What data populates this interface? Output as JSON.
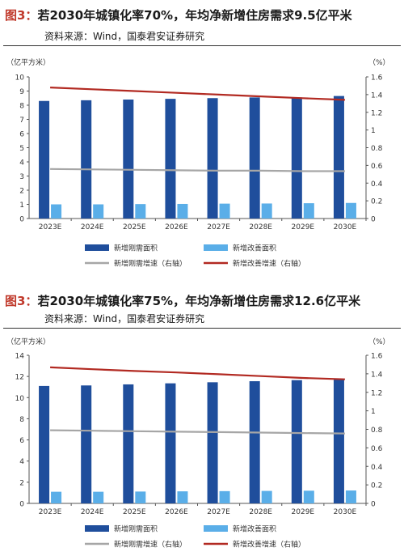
{
  "charts": [
    {
      "fig_label": "图3：",
      "title": "若2030年城镇化率70%，年均净新增住房需求9.5亿平米",
      "source": "资料来源：Wind，国泰君安证券研究",
      "chart_data": {
        "type": "bar",
        "categories": [
          "2023E",
          "2024E",
          "2025E",
          "2026E",
          "2027E",
          "2028E",
          "2029E",
          "2030E"
        ],
        "ylabel": "（亿平方米）",
        "ylabel_right": "（%）",
        "ylim": [
          0,
          10
        ],
        "y_ticks": [
          0,
          1,
          2,
          3,
          4,
          5,
          6,
          7,
          8,
          9,
          10
        ],
        "y2lim": [
          0,
          1.6
        ],
        "y2_ticks": [
          0,
          0.2,
          0.4,
          0.6,
          0.8,
          1,
          1.2,
          1.4,
          1.6
        ],
        "series": [
          {
            "name": "新增刚需面积",
            "kind": "bar",
            "axis": "left",
            "color": "#1f4e9c",
            "values": [
              8.3,
              8.35,
              8.4,
              8.45,
              8.5,
              8.55,
              8.55,
              8.65
            ]
          },
          {
            "name": "新增改善面积",
            "kind": "bar",
            "axis": "left",
            "color": "#5aaee8",
            "values": [
              1.0,
              1.0,
              1.02,
              1.03,
              1.05,
              1.06,
              1.08,
              1.1
            ]
          },
          {
            "name": "新增刚需增速（右轴）",
            "kind": "line",
            "axis": "right",
            "color": "#a6a6a6",
            "values": [
              0.56,
              0.555,
              0.55,
              0.545,
              0.54,
              0.54,
              0.535,
              0.535
            ]
          },
          {
            "name": "新增改善增速（右轴）",
            "kind": "line",
            "axis": "right",
            "color": "#b22a22",
            "values": [
              1.48,
              1.46,
              1.44,
              1.42,
              1.4,
              1.38,
              1.36,
              1.34
            ]
          }
        ],
        "grid": false,
        "legend": "bottom"
      }
    },
    {
      "fig_label": "图3：",
      "title": "若2030年城镇化率75%，年均净新增住房需求12.6亿平米",
      "source": "资料来源：Wind，国泰君安证券研究",
      "chart_data": {
        "type": "bar",
        "categories": [
          "2023E",
          "2024E",
          "2025E",
          "2026E",
          "2027E",
          "2028E",
          "2029E",
          "2030E"
        ],
        "ylabel": "（亿平方米）",
        "ylabel_right": "（%）",
        "ylim": [
          0,
          14
        ],
        "y_ticks": [
          0,
          2,
          4,
          6,
          8,
          10,
          12,
          14
        ],
        "y2lim": [
          0,
          1.6
        ],
        "y2_ticks": [
          0,
          0.2,
          0.4,
          0.6,
          0.8,
          1,
          1.2,
          1.4,
          1.6
        ],
        "series": [
          {
            "name": "新增刚需面积",
            "kind": "bar",
            "axis": "left",
            "color": "#1f4e9c",
            "values": [
              11.1,
              11.15,
              11.25,
              11.35,
              11.45,
              11.55,
              11.65,
              11.75
            ]
          },
          {
            "name": "新增改善面积",
            "kind": "bar",
            "axis": "left",
            "color": "#5aaee8",
            "values": [
              1.1,
              1.1,
              1.12,
              1.14,
              1.16,
              1.18,
              1.2,
              1.22
            ]
          },
          {
            "name": "新增刚需增速（右轴）",
            "kind": "line",
            "axis": "right",
            "color": "#a6a6a6",
            "values": [
              0.79,
              0.785,
              0.78,
              0.775,
              0.77,
              0.765,
              0.76,
              0.755
            ]
          },
          {
            "name": "新增改善增速（右轴）",
            "kind": "line",
            "axis": "right",
            "color": "#b22a22",
            "values": [
              1.47,
              1.45,
              1.43,
              1.415,
              1.395,
              1.375,
              1.355,
              1.34
            ]
          }
        ],
        "grid": false,
        "legend": "bottom"
      }
    }
  ]
}
